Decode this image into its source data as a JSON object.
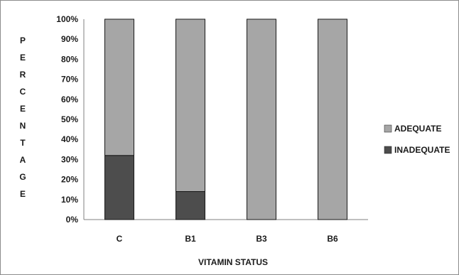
{
  "chart_data": {
    "type": "bar",
    "stacked": true,
    "percent": true,
    "categories": [
      "C",
      "B1",
      "B3",
      "B6"
    ],
    "series": [
      {
        "name": "INADEQUATE",
        "values": [
          32,
          14,
          0,
          0
        ],
        "color": "#4d4d4d"
      },
      {
        "name": "ADEQUATE",
        "values": [
          68,
          86,
          100,
          100
        ],
        "color": "#a6a6a6"
      }
    ],
    "ylim": [
      0,
      100
    ],
    "yticks": [
      "0%",
      "10%",
      "20%",
      "30%",
      "40%",
      "50%",
      "60%",
      "70%",
      "80%",
      "90%",
      "100%"
    ],
    "ylabel": "PERCENTAGE",
    "xlabel": "VITAMIN STATUS",
    "legend": {
      "placement": "right",
      "entries": [
        "ADEQUATE",
        "INADEQUATE"
      ]
    },
    "grid": false
  }
}
